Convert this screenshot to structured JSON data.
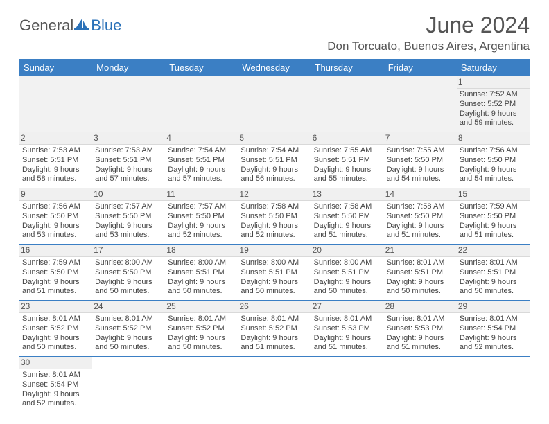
{
  "logo": {
    "general": "General",
    "blue": "Blue"
  },
  "title": "June 2024",
  "location": "Don Torcuato, Buenos Aires, Argentina",
  "colors": {
    "header_bg": "#3b7fc4",
    "header_text": "#ffffff",
    "row_border": "#3b7fc4",
    "daynum_bg": "#f0f0f0",
    "text": "#444444"
  },
  "dayNames": [
    "Sunday",
    "Monday",
    "Tuesday",
    "Wednesday",
    "Thursday",
    "Friday",
    "Saturday"
  ],
  "weeks": [
    [
      null,
      null,
      null,
      null,
      null,
      null,
      {
        "n": 1,
        "sr": "7:52 AM",
        "ss": "5:52 PM",
        "dl": "9 hours and 59 minutes."
      }
    ],
    [
      {
        "n": 2,
        "sr": "7:53 AM",
        "ss": "5:51 PM",
        "dl": "9 hours and 58 minutes."
      },
      {
        "n": 3,
        "sr": "7:53 AM",
        "ss": "5:51 PM",
        "dl": "9 hours and 57 minutes."
      },
      {
        "n": 4,
        "sr": "7:54 AM",
        "ss": "5:51 PM",
        "dl": "9 hours and 57 minutes."
      },
      {
        "n": 5,
        "sr": "7:54 AM",
        "ss": "5:51 PM",
        "dl": "9 hours and 56 minutes."
      },
      {
        "n": 6,
        "sr": "7:55 AM",
        "ss": "5:51 PM",
        "dl": "9 hours and 55 minutes."
      },
      {
        "n": 7,
        "sr": "7:55 AM",
        "ss": "5:50 PM",
        "dl": "9 hours and 54 minutes."
      },
      {
        "n": 8,
        "sr": "7:56 AM",
        "ss": "5:50 PM",
        "dl": "9 hours and 54 minutes."
      }
    ],
    [
      {
        "n": 9,
        "sr": "7:56 AM",
        "ss": "5:50 PM",
        "dl": "9 hours and 53 minutes."
      },
      {
        "n": 10,
        "sr": "7:57 AM",
        "ss": "5:50 PM",
        "dl": "9 hours and 53 minutes."
      },
      {
        "n": 11,
        "sr": "7:57 AM",
        "ss": "5:50 PM",
        "dl": "9 hours and 52 minutes."
      },
      {
        "n": 12,
        "sr": "7:58 AM",
        "ss": "5:50 PM",
        "dl": "9 hours and 52 minutes."
      },
      {
        "n": 13,
        "sr": "7:58 AM",
        "ss": "5:50 PM",
        "dl": "9 hours and 51 minutes."
      },
      {
        "n": 14,
        "sr": "7:58 AM",
        "ss": "5:50 PM",
        "dl": "9 hours and 51 minutes."
      },
      {
        "n": 15,
        "sr": "7:59 AM",
        "ss": "5:50 PM",
        "dl": "9 hours and 51 minutes."
      }
    ],
    [
      {
        "n": 16,
        "sr": "7:59 AM",
        "ss": "5:50 PM",
        "dl": "9 hours and 51 minutes."
      },
      {
        "n": 17,
        "sr": "8:00 AM",
        "ss": "5:50 PM",
        "dl": "9 hours and 50 minutes."
      },
      {
        "n": 18,
        "sr": "8:00 AM",
        "ss": "5:51 PM",
        "dl": "9 hours and 50 minutes."
      },
      {
        "n": 19,
        "sr": "8:00 AM",
        "ss": "5:51 PM",
        "dl": "9 hours and 50 minutes."
      },
      {
        "n": 20,
        "sr": "8:00 AM",
        "ss": "5:51 PM",
        "dl": "9 hours and 50 minutes."
      },
      {
        "n": 21,
        "sr": "8:01 AM",
        "ss": "5:51 PM",
        "dl": "9 hours and 50 minutes."
      },
      {
        "n": 22,
        "sr": "8:01 AM",
        "ss": "5:51 PM",
        "dl": "9 hours and 50 minutes."
      }
    ],
    [
      {
        "n": 23,
        "sr": "8:01 AM",
        "ss": "5:52 PM",
        "dl": "9 hours and 50 minutes."
      },
      {
        "n": 24,
        "sr": "8:01 AM",
        "ss": "5:52 PM",
        "dl": "9 hours and 50 minutes."
      },
      {
        "n": 25,
        "sr": "8:01 AM",
        "ss": "5:52 PM",
        "dl": "9 hours and 50 minutes."
      },
      {
        "n": 26,
        "sr": "8:01 AM",
        "ss": "5:52 PM",
        "dl": "9 hours and 51 minutes."
      },
      {
        "n": 27,
        "sr": "8:01 AM",
        "ss": "5:53 PM",
        "dl": "9 hours and 51 minutes."
      },
      {
        "n": 28,
        "sr": "8:01 AM",
        "ss": "5:53 PM",
        "dl": "9 hours and 51 minutes."
      },
      {
        "n": 29,
        "sr": "8:01 AM",
        "ss": "5:54 PM",
        "dl": "9 hours and 52 minutes."
      }
    ],
    [
      {
        "n": 30,
        "sr": "8:01 AM",
        "ss": "5:54 PM",
        "dl": "9 hours and 52 minutes."
      },
      null,
      null,
      null,
      null,
      null,
      null
    ]
  ],
  "labels": {
    "sunrise": "Sunrise:",
    "sunset": "Sunset:",
    "daylight": "Daylight:"
  }
}
